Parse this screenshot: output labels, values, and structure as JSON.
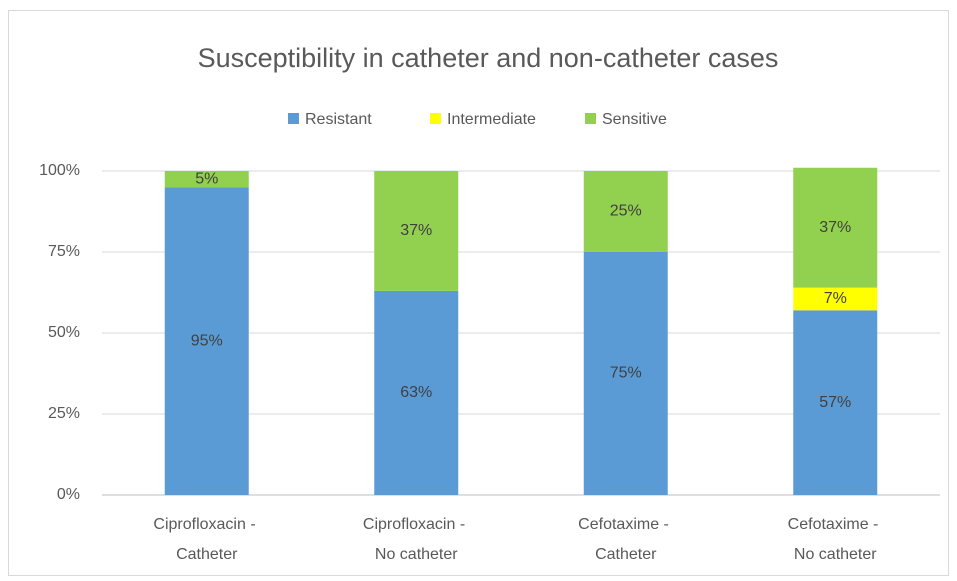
{
  "chart_data": {
    "type": "stacked_bar",
    "title": "Susceptibility in catheter and non-catheter cases",
    "categories": [
      "Ciprofloxacin - Catheter",
      "Ciprofloxacin - No catheter",
      "Cefotaxime - Catheter",
      "Cefotaxime - No catheter"
    ],
    "series": [
      {
        "name": "Resistant",
        "color": "#5b9bd5",
        "values": [
          95,
          63,
          75,
          57
        ],
        "value_labels": [
          "95%",
          "63%",
          "75%",
          "57%"
        ]
      },
      {
        "name": "Intermediate",
        "color": "#ffff00",
        "values": [
          0,
          0,
          0,
          7
        ],
        "value_labels": [
          null,
          null,
          null,
          "7%"
        ]
      },
      {
        "name": "Sensitive",
        "color": "#92d050",
        "values": [
          5,
          37,
          25,
          37
        ],
        "value_labels": [
          "5%",
          "37%",
          "25%",
          "37%"
        ]
      }
    ],
    "ylim": [
      0,
      100
    ],
    "yticks": [
      {
        "value": 0,
        "label": "0%"
      },
      {
        "value": 25,
        "label": "25%"
      },
      {
        "value": 50,
        "label": "50%"
      },
      {
        "value": 75,
        "label": "75%"
      },
      {
        "value": 100,
        "label": "100%"
      }
    ],
    "grid": true,
    "legend": "top"
  }
}
